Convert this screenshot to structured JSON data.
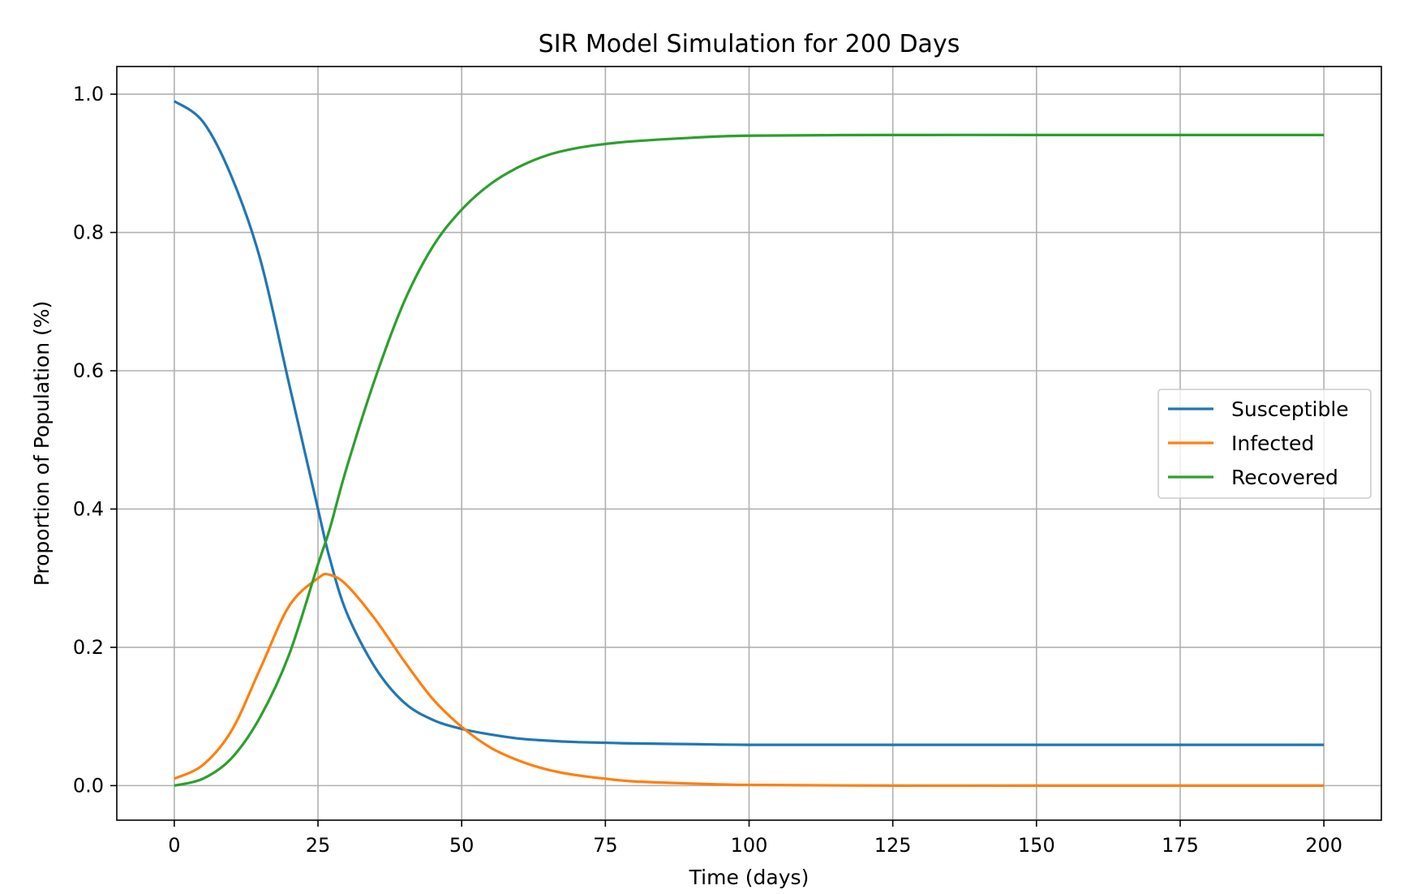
{
  "chart_data": {
    "type": "line",
    "title": "SIR Model Simulation for 200 Days",
    "xlabel": "Time (days)",
    "ylabel": "Proportion of Population (%)",
    "xlim": [
      -10,
      210
    ],
    "ylim": [
      -0.05,
      1.04
    ],
    "xticks": [
      0,
      25,
      50,
      75,
      100,
      125,
      150,
      175,
      200
    ],
    "xtick_labels": [
      "0",
      "25",
      "50",
      "75",
      "100",
      "125",
      "150",
      "175",
      "200"
    ],
    "yticks": [
      0.0,
      0.2,
      0.4,
      0.6,
      0.8,
      1.0
    ],
    "ytick_labels": [
      "0.0",
      "0.2",
      "0.4",
      "0.6",
      "0.8",
      "1.0"
    ],
    "grid": true,
    "legend": {
      "placement": "center-right"
    },
    "x": [
      0,
      5,
      10,
      15,
      20,
      25,
      27,
      30,
      35,
      40,
      45,
      50,
      55,
      60,
      65,
      70,
      75,
      80,
      90,
      100,
      125,
      150,
      175,
      200
    ],
    "series": [
      {
        "name": "Susceptible",
        "color": "#1f77b4",
        "values": [
          0.99,
          0.96,
          0.88,
          0.76,
          0.58,
          0.4,
          0.33,
          0.25,
          0.17,
          0.12,
          0.095,
          0.082,
          0.074,
          0.068,
          0.065,
          0.063,
          0.062,
          0.061,
          0.06,
          0.059,
          0.059,
          0.059,
          0.059,
          0.059
        ]
      },
      {
        "name": "Infected",
        "color": "#ff7f0e",
        "values": [
          0.01,
          0.03,
          0.08,
          0.17,
          0.26,
          0.3,
          0.305,
          0.29,
          0.24,
          0.18,
          0.125,
          0.085,
          0.055,
          0.036,
          0.023,
          0.015,
          0.01,
          0.006,
          0.003,
          0.001,
          0.0,
          0.0,
          0.0,
          0.0
        ]
      },
      {
        "name": "Recovered",
        "color": "#2ca02c",
        "values": [
          0.0,
          0.01,
          0.04,
          0.1,
          0.19,
          0.32,
          0.37,
          0.46,
          0.59,
          0.7,
          0.78,
          0.833,
          0.87,
          0.895,
          0.912,
          0.922,
          0.928,
          0.932,
          0.937,
          0.94,
          0.941,
          0.941,
          0.941,
          0.941
        ]
      }
    ]
  }
}
